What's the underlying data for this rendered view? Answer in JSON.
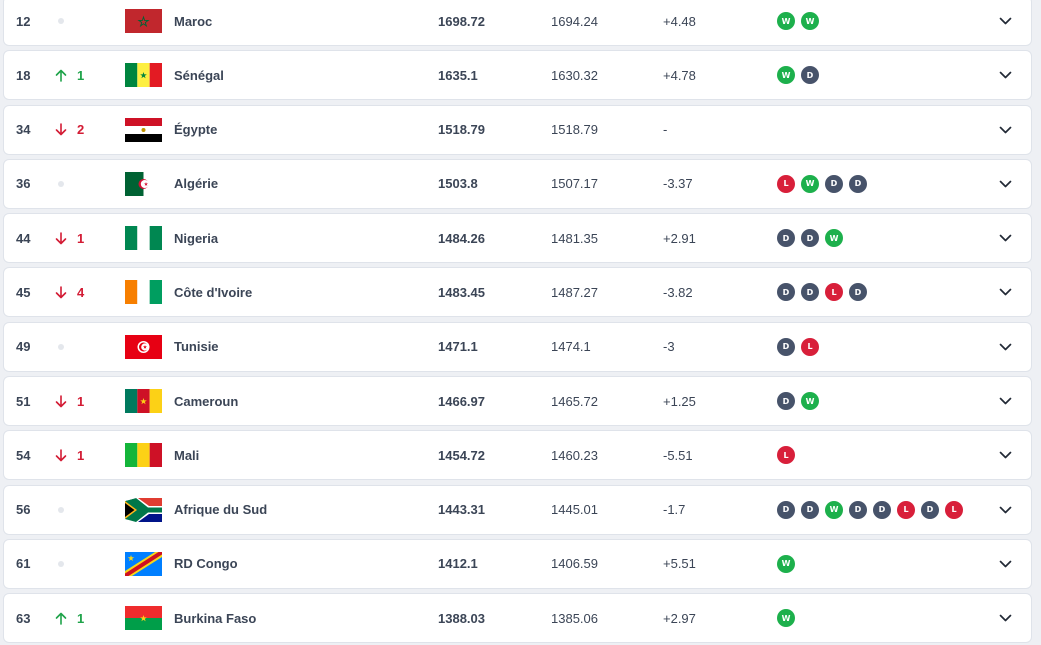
{
  "rankings": [
    {
      "rank": "12",
      "movement": {
        "dir": "same",
        "value": ""
      },
      "flag": "flag-morocco",
      "team": "Maroc",
      "points": "1698.72",
      "previous": "1694.24",
      "diff": "+4.48",
      "form": [
        "W",
        "W"
      ]
    },
    {
      "rank": "18",
      "movement": {
        "dir": "up",
        "value": "1"
      },
      "flag": "flag-senegal",
      "team": "Sénégal",
      "points": "1635.1",
      "previous": "1630.32",
      "diff": "+4.78",
      "form": [
        "W",
        "D"
      ]
    },
    {
      "rank": "34",
      "movement": {
        "dir": "down",
        "value": "2"
      },
      "flag": "flag-egypt",
      "team": "Égypte",
      "points": "1518.79",
      "previous": "1518.79",
      "diff": "-",
      "form": []
    },
    {
      "rank": "36",
      "movement": {
        "dir": "same",
        "value": ""
      },
      "flag": "flag-algeria",
      "team": "Algérie",
      "points": "1503.8",
      "previous": "1507.17",
      "diff": "-3.37",
      "form": [
        "L",
        "W",
        "D",
        "D"
      ]
    },
    {
      "rank": "44",
      "movement": {
        "dir": "down",
        "value": "1"
      },
      "flag": "flag-nigeria",
      "team": "Nigeria",
      "points": "1484.26",
      "previous": "1481.35",
      "diff": "+2.91",
      "form": [
        "D",
        "D",
        "W"
      ]
    },
    {
      "rank": "45",
      "movement": {
        "dir": "down",
        "value": "4"
      },
      "flag": "flag-cote-divoire",
      "team": "Côte d'Ivoire",
      "points": "1483.45",
      "previous": "1487.27",
      "diff": "-3.82",
      "form": [
        "D",
        "D",
        "L",
        "D"
      ]
    },
    {
      "rank": "49",
      "movement": {
        "dir": "same",
        "value": ""
      },
      "flag": "flag-tunisia",
      "team": "Tunisie",
      "points": "1471.1",
      "previous": "1474.1",
      "diff": "-3",
      "form": [
        "D",
        "L"
      ]
    },
    {
      "rank": "51",
      "movement": {
        "dir": "down",
        "value": "1"
      },
      "flag": "flag-cameroon",
      "team": "Cameroun",
      "points": "1466.97",
      "previous": "1465.72",
      "diff": "+1.25",
      "form": [
        "D",
        "W"
      ]
    },
    {
      "rank": "54",
      "movement": {
        "dir": "down",
        "value": "1"
      },
      "flag": "flag-mali",
      "team": "Mali",
      "points": "1454.72",
      "previous": "1460.23",
      "diff": "-5.51",
      "form": [
        "L"
      ]
    },
    {
      "rank": "56",
      "movement": {
        "dir": "same",
        "value": ""
      },
      "flag": "flag-south-africa",
      "team": "Afrique du Sud",
      "points": "1443.31",
      "previous": "1445.01",
      "diff": "-1.7",
      "form": [
        "D",
        "D",
        "W",
        "D",
        "D",
        "L",
        "D",
        "L"
      ]
    },
    {
      "rank": "61",
      "movement": {
        "dir": "same",
        "value": ""
      },
      "flag": "flag-dr-congo",
      "team": "RD Congo",
      "points": "1412.1",
      "previous": "1406.59",
      "diff": "+5.51",
      "form": [
        "W"
      ]
    },
    {
      "rank": "63",
      "movement": {
        "dir": "up",
        "value": "1"
      },
      "flag": "flag-burkina-faso",
      "team": "Burkina Faso",
      "points": "1388.03",
      "previous": "1385.06",
      "diff": "+2.97",
      "form": [
        "W"
      ]
    }
  ],
  "colors": {
    "win": "#1db04c",
    "draw": "#47536a",
    "loss": "#d81f3a",
    "up": "#1fa34a",
    "down": "#d31b34"
  },
  "icons": {
    "expand": "chevron-down-icon",
    "up": "arrow-up-icon",
    "down": "arrow-down-icon",
    "unchanged": "no-change-dot-icon"
  }
}
